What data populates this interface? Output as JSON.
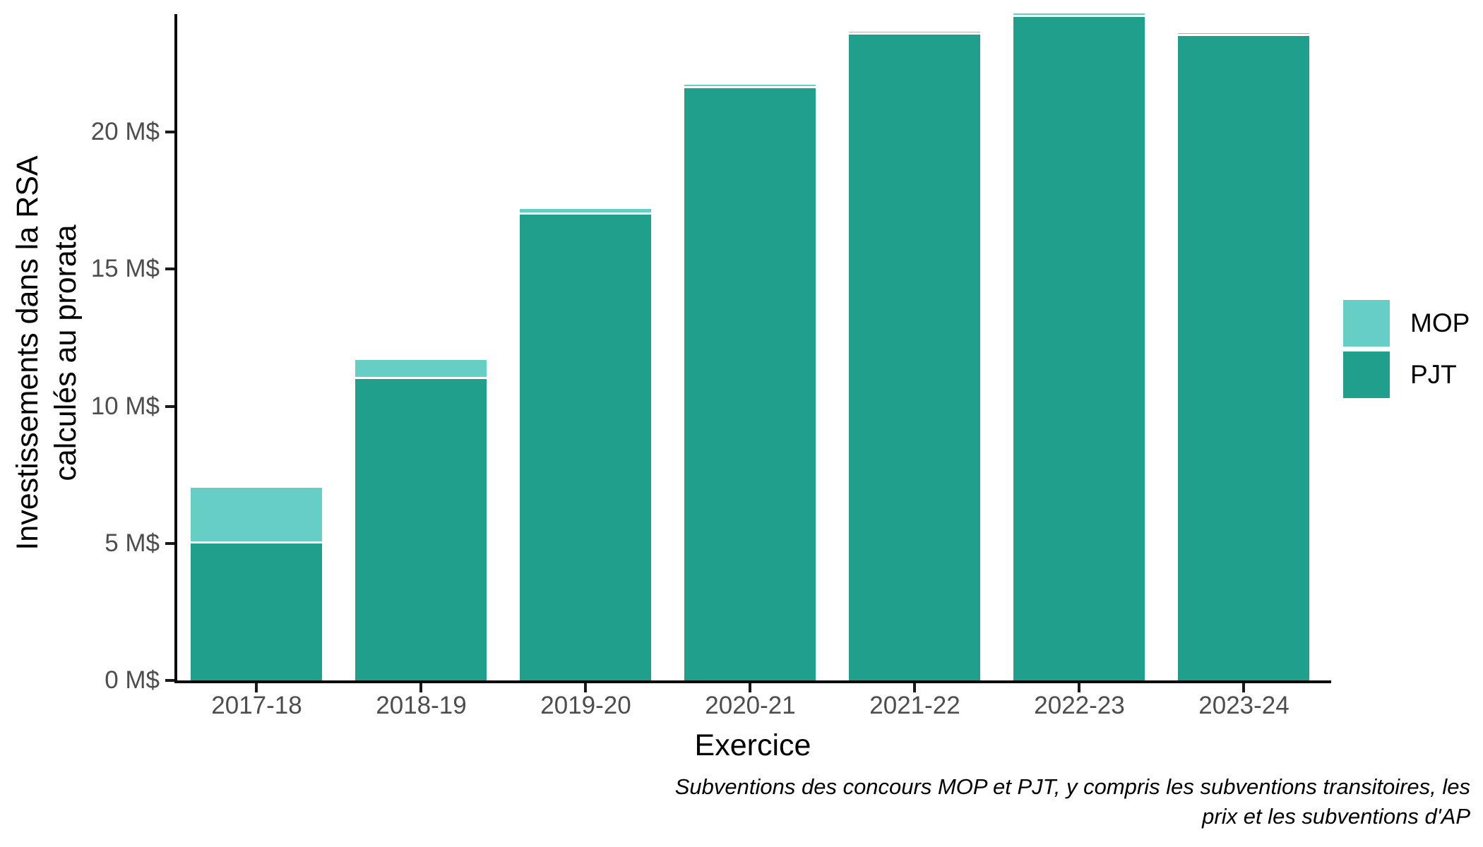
{
  "chart_data": {
    "type": "bar",
    "stacked": true,
    "xlabel": "Exercice",
    "ylabel_lines": [
      "Investissements dans la RSA",
      "calculés au prorata"
    ],
    "caption_lines": [
      "Subventions des concours MOP et PJT, y compris les subventions transitoires, les",
      "prix et les subventions d'AP"
    ],
    "categories": [
      "2017-18",
      "2018-19",
      "2019-20",
      "2020-21",
      "2021-22",
      "2022-23",
      "2023-24"
    ],
    "series": [
      {
        "name": "MOP",
        "color": "#67CEC6",
        "values": [
          1.95,
          0.6,
          0.12,
          0.06,
          0.04,
          0.04,
          0.03
        ]
      },
      {
        "name": "PJT",
        "color": "#20A08C",
        "values": [
          5.0,
          11.0,
          17.0,
          21.6,
          23.55,
          24.2,
          23.5
        ]
      }
    ],
    "totals": [
      6.95,
      11.6,
      17.12,
      21.66,
      23.59,
      24.24,
      23.53
    ],
    "y_ticks": [
      {
        "value": 0,
        "label": "0 M$"
      },
      {
        "value": 5,
        "label": "5 M$"
      },
      {
        "value": 10,
        "label": "10 M$"
      },
      {
        "value": 15,
        "label": "15 M$"
      },
      {
        "value": 20,
        "label": "20 M$"
      }
    ],
    "unit": "M$",
    "ylim": [
      0,
      24.4
    ],
    "grid": false,
    "legend_position": "right",
    "axis_text_color": "#4d4d4d",
    "axis_line_color": "#0a0a0a",
    "segment_divider_color": "#ffffff"
  }
}
